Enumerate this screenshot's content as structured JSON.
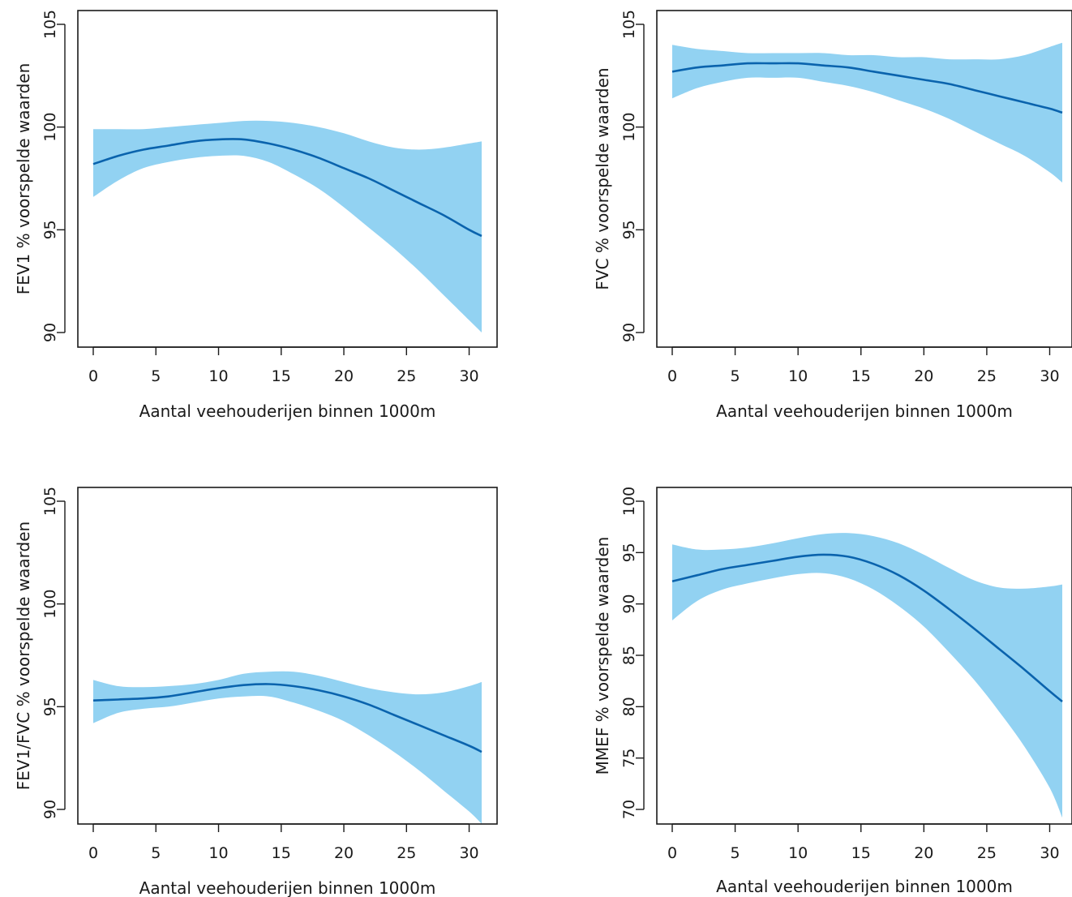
{
  "colors": {
    "band": "#92d2f2",
    "line": "#0a63ad",
    "axis": "#1a1a1a"
  },
  "chart_data": [
    {
      "type": "line",
      "title": "",
      "xlabel": "Aantal veehouderijen binnen 1000m",
      "ylabel": "FEV1 % voorspelde waarden",
      "xlim": [
        0,
        31
      ],
      "ylim": [
        90,
        105
      ],
      "xticks": [
        0,
        5,
        10,
        15,
        20,
        25,
        30
      ],
      "yticks": [
        90,
        95,
        100,
        105
      ],
      "x": [
        0,
        2,
        4,
        6,
        8,
        10,
        12,
        14,
        16,
        18,
        20,
        22,
        24,
        26,
        28,
        30,
        31
      ],
      "series": [
        {
          "role": "fit",
          "values": [
            98.2,
            98.6,
            98.9,
            99.1,
            99.3,
            99.4,
            99.4,
            99.2,
            98.9,
            98.5,
            98.0,
            97.5,
            96.9,
            96.3,
            95.7,
            95.0,
            94.7
          ]
        },
        {
          "role": "upper",
          "values": [
            99.9,
            99.9,
            99.9,
            100.0,
            100.1,
            100.2,
            100.3,
            100.3,
            100.2,
            100.0,
            99.7,
            99.3,
            99.0,
            98.9,
            99.0,
            99.2,
            99.3
          ]
        },
        {
          "role": "lower",
          "values": [
            96.6,
            97.4,
            98.0,
            98.3,
            98.5,
            98.6,
            98.6,
            98.3,
            97.7,
            97.0,
            96.1,
            95.1,
            94.1,
            93.0,
            91.8,
            90.6,
            90.0
          ]
        }
      ]
    },
    {
      "type": "line",
      "title": "",
      "xlabel": "Aantal veehouderijen binnen 1000m",
      "ylabel": "FVC % voorspelde waarden",
      "xlim": [
        0,
        31
      ],
      "ylim": [
        90,
        105
      ],
      "xticks": [
        0,
        5,
        10,
        15,
        20,
        25,
        30
      ],
      "yticks": [
        90,
        95,
        100,
        105
      ],
      "x": [
        0,
        2,
        4,
        6,
        8,
        10,
        12,
        14,
        16,
        18,
        20,
        22,
        24,
        26,
        28,
        30,
        31
      ],
      "series": [
        {
          "role": "fit",
          "values": [
            102.7,
            102.9,
            103.0,
            103.1,
            103.1,
            103.1,
            103.0,
            102.9,
            102.7,
            102.5,
            102.3,
            102.1,
            101.8,
            101.5,
            101.2,
            100.9,
            100.7
          ]
        },
        {
          "role": "upper",
          "values": [
            104.0,
            103.8,
            103.7,
            103.6,
            103.6,
            103.6,
            103.6,
            103.5,
            103.5,
            103.4,
            103.4,
            103.3,
            103.3,
            103.3,
            103.5,
            103.9,
            104.1
          ]
        },
        {
          "role": "lower",
          "values": [
            101.4,
            101.9,
            102.2,
            102.4,
            102.4,
            102.4,
            102.2,
            102.0,
            101.7,
            101.3,
            100.9,
            100.4,
            99.8,
            99.2,
            98.6,
            97.8,
            97.3
          ]
        }
      ]
    },
    {
      "type": "line",
      "title": "",
      "xlabel": "Aantal veehouderijen binnen 1000m",
      "ylabel": "FEV1/FVC % voorspelde waarden",
      "xlim": [
        0,
        31
      ],
      "ylim": [
        90,
        105
      ],
      "xticks": [
        0,
        5,
        10,
        15,
        20,
        25,
        30
      ],
      "yticks": [
        90,
        95,
        100,
        105
      ],
      "x": [
        0,
        2,
        4,
        6,
        8,
        10,
        12,
        14,
        16,
        18,
        20,
        22,
        24,
        26,
        28,
        30,
        31
      ],
      "series": [
        {
          "role": "fit",
          "values": [
            95.3,
            95.35,
            95.4,
            95.5,
            95.7,
            95.9,
            96.05,
            96.1,
            96.0,
            95.8,
            95.5,
            95.1,
            94.6,
            94.1,
            93.6,
            93.1,
            92.8
          ]
        },
        {
          "role": "upper",
          "values": [
            96.3,
            96.0,
            95.95,
            96.0,
            96.1,
            96.3,
            96.6,
            96.7,
            96.7,
            96.5,
            96.2,
            95.9,
            95.7,
            95.6,
            95.7,
            96.0,
            96.2
          ]
        },
        {
          "role": "lower",
          "values": [
            94.2,
            94.7,
            94.9,
            95.0,
            95.2,
            95.4,
            95.5,
            95.5,
            95.2,
            94.8,
            94.3,
            93.6,
            92.8,
            91.9,
            90.9,
            89.9,
            89.3
          ]
        }
      ]
    },
    {
      "type": "line",
      "title": "",
      "xlabel": "Aantal veehouderijen binnen 1000m",
      "ylabel": "MMEF % voorspelde waarden",
      "xlim": [
        0,
        31
      ],
      "ylim": [
        70,
        100
      ],
      "xticks": [
        0,
        5,
        10,
        15,
        20,
        25,
        30
      ],
      "yticks": [
        70,
        75,
        80,
        85,
        90,
        95,
        100
      ],
      "x": [
        0,
        2,
        4,
        6,
        8,
        10,
        12,
        14,
        16,
        18,
        20,
        22,
        24,
        26,
        28,
        30,
        31
      ],
      "series": [
        {
          "role": "fit",
          "values": [
            92.2,
            92.8,
            93.4,
            93.8,
            94.2,
            94.6,
            94.8,
            94.6,
            93.9,
            92.8,
            91.3,
            89.5,
            87.6,
            85.6,
            83.6,
            81.5,
            80.5
          ]
        },
        {
          "role": "upper",
          "values": [
            95.8,
            95.3,
            95.3,
            95.5,
            95.9,
            96.4,
            96.8,
            96.9,
            96.6,
            95.9,
            94.8,
            93.5,
            92.3,
            91.6,
            91.5,
            91.7,
            91.9
          ]
        },
        {
          "role": "lower",
          "values": [
            88.4,
            90.3,
            91.4,
            92.0,
            92.5,
            92.9,
            93.0,
            92.5,
            91.4,
            89.8,
            87.8,
            85.3,
            82.6,
            79.5,
            76.1,
            72.1,
            69.2
          ]
        }
      ]
    }
  ]
}
